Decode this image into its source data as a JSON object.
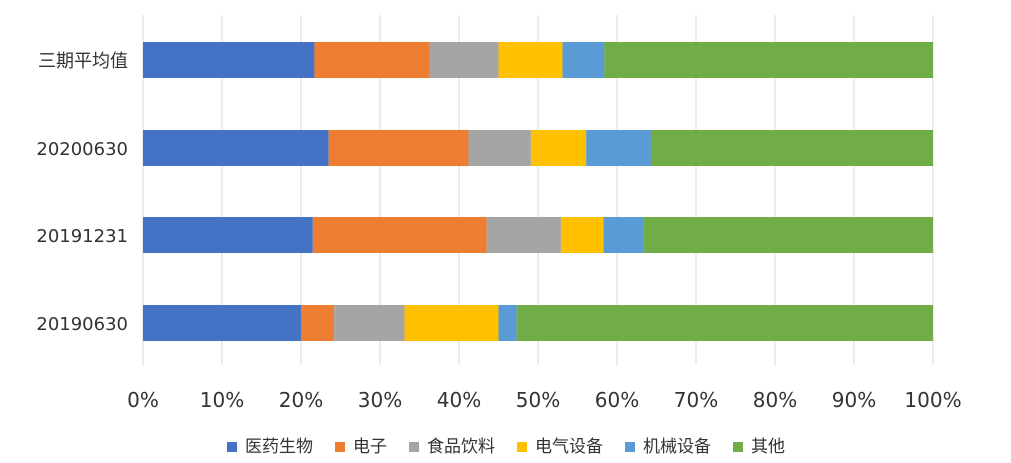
{
  "chart_data": {
    "type": "bar",
    "orientation": "horizontal",
    "stacked": "percent",
    "title": "",
    "xlabel": "",
    "ylabel": "",
    "xlim": [
      0,
      100
    ],
    "x_ticks": [
      "0%",
      "10%",
      "20%",
      "30%",
      "40%",
      "50%",
      "60%",
      "70%",
      "80%",
      "90%",
      "100%"
    ],
    "categories": [
      "三期平均值",
      "20200630",
      "20191231",
      "20190630"
    ],
    "series": [
      {
        "name": "医药生物",
        "color": "#4472C4",
        "values": [
          21.7,
          23.5,
          21.5,
          20.0
        ]
      },
      {
        "name": "电子",
        "color": "#ED7D31",
        "values": [
          14.5,
          17.7,
          22.0,
          4.2
        ]
      },
      {
        "name": "食品饮料",
        "color": "#A5A5A5",
        "values": [
          8.8,
          7.9,
          9.4,
          8.9
        ]
      },
      {
        "name": "电气设备",
        "color": "#FFC000",
        "values": [
          8.1,
          7.0,
          5.4,
          11.9
        ]
      },
      {
        "name": "机械设备",
        "color": "#5B9BD5",
        "values": [
          5.3,
          8.2,
          5.1,
          2.3
        ]
      },
      {
        "name": "其他",
        "color": "#70AD47",
        "values": [
          41.6,
          35.7,
          36.6,
          52.7
        ]
      }
    ],
    "grid": true,
    "legend_position": "bottom"
  }
}
